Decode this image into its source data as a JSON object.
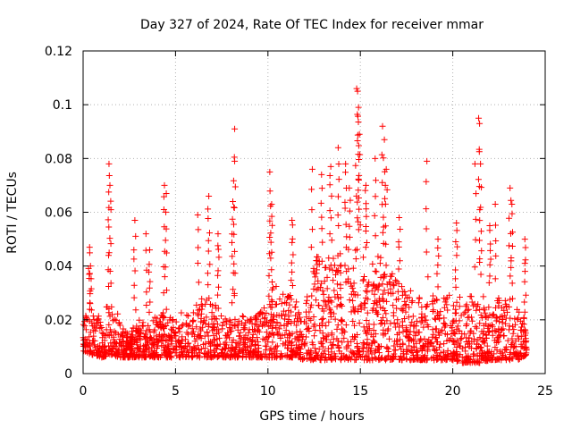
{
  "chart_data": {
    "type": "scatter",
    "title": "Day 327 of 2024, Rate Of TEC Index for receiver mmar",
    "xlabel": "GPS time / hours",
    "ylabel": "ROTI / TECUs",
    "xlim": [
      0,
      25
    ],
    "ylim": [
      0,
      0.12
    ],
    "xticks": [
      "0",
      "5",
      "10",
      "15",
      "20",
      "25"
    ],
    "yticks": [
      "0",
      "0.02",
      "0.04",
      "0.06",
      "0.08",
      "0.1",
      "0.12"
    ],
    "grid": true,
    "marker": "+",
    "color": "#ff0000",
    "series": [
      {
        "name": "ROTI",
        "description": "dense cloud of ~ 2000 plus-marker points from 0 to 24 h; baseline 0.005-0.02, spikes listed below",
        "envelope": {
          "x": [
            0,
            0.5,
            1,
            1.5,
            2,
            2.5,
            3,
            3.5,
            4,
            4.5,
            5,
            5.5,
            6,
            6.5,
            7,
            7.5,
            8,
            8.5,
            9,
            9.5,
            10,
            10.5,
            11,
            11.5,
            12,
            12.5,
            13,
            13.5,
            14,
            14.5,
            15,
            15.5,
            16,
            16.5,
            17,
            17.5,
            18,
            18.5,
            19,
            19.5,
            20,
            20.5,
            21,
            21.5,
            22,
            22.5,
            23,
            23.5,
            24
          ],
          "low": [
            0.008,
            0.007,
            0.006,
            0.007,
            0.006,
            0.006,
            0.006,
            0.006,
            0.006,
            0.006,
            0.006,
            0.006,
            0.006,
            0.006,
            0.006,
            0.006,
            0.006,
            0.006,
            0.006,
            0.006,
            0.006,
            0.006,
            0.006,
            0.006,
            0.005,
            0.005,
            0.005,
            0.005,
            0.005,
            0.005,
            0.005,
            0.005,
            0.005,
            0.005,
            0.005,
            0.005,
            0.005,
            0.005,
            0.005,
            0.005,
            0.005,
            0.004,
            0.004,
            0.004,
            0.005,
            0.005,
            0.005,
            0.005,
            0.006
          ],
          "high": [
            0.022,
            0.025,
            0.02,
            0.03,
            0.02,
            0.015,
            0.02,
            0.018,
            0.022,
            0.025,
            0.02,
            0.025,
            0.025,
            0.03,
            0.028,
            0.025,
            0.02,
            0.022,
            0.02,
            0.022,
            0.03,
            0.035,
            0.03,
            0.03,
            0.025,
            0.045,
            0.045,
            0.045,
            0.05,
            0.045,
            0.048,
            0.04,
            0.045,
            0.04,
            0.035,
            0.032,
            0.03,
            0.028,
            0.03,
            0.028,
            0.03,
            0.028,
            0.03,
            0.03,
            0.03,
            0.028,
            0.03,
            0.028,
            0.022
          ]
        },
        "spikes": [
          {
            "x": 1.4,
            "y": 0.078
          },
          {
            "x": 1.45,
            "y": 0.07
          },
          {
            "x": 0.35,
            "y": 0.047
          },
          {
            "x": 0.4,
            "y": 0.04
          },
          {
            "x": 2.8,
            "y": 0.057
          },
          {
            "x": 3.4,
            "y": 0.052
          },
          {
            "x": 3.6,
            "y": 0.046
          },
          {
            "x": 4.4,
            "y": 0.07
          },
          {
            "x": 4.5,
            "y": 0.067
          },
          {
            "x": 6.2,
            "y": 0.059
          },
          {
            "x": 6.8,
            "y": 0.066
          },
          {
            "x": 7.3,
            "y": 0.052
          },
          {
            "x": 8.2,
            "y": 0.091
          },
          {
            "x": 8.2,
            "y": 0.079
          },
          {
            "x": 8.1,
            "y": 0.064
          },
          {
            "x": 10.1,
            "y": 0.075
          },
          {
            "x": 10.2,
            "y": 0.063
          },
          {
            "x": 11.3,
            "y": 0.057
          },
          {
            "x": 12.4,
            "y": 0.076
          },
          {
            "x": 12.9,
            "y": 0.074
          },
          {
            "x": 13.4,
            "y": 0.077
          },
          {
            "x": 13.8,
            "y": 0.084
          },
          {
            "x": 14.2,
            "y": 0.078
          },
          {
            "x": 14.4,
            "y": 0.069
          },
          {
            "x": 14.8,
            "y": 0.106
          },
          {
            "x": 14.85,
            "y": 0.105
          },
          {
            "x": 14.9,
            "y": 0.099
          },
          {
            "x": 14.95,
            "y": 0.089
          },
          {
            "x": 15.3,
            "y": 0.07
          },
          {
            "x": 15.8,
            "y": 0.08
          },
          {
            "x": 16.2,
            "y": 0.092
          },
          {
            "x": 16.3,
            "y": 0.087
          },
          {
            "x": 16.4,
            "y": 0.076
          },
          {
            "x": 17.1,
            "y": 0.058
          },
          {
            "x": 18.6,
            "y": 0.079
          },
          {
            "x": 19.2,
            "y": 0.05
          },
          {
            "x": 20.2,
            "y": 0.056
          },
          {
            "x": 21.4,
            "y": 0.095
          },
          {
            "x": 21.45,
            "y": 0.093
          },
          {
            "x": 21.2,
            "y": 0.078
          },
          {
            "x": 21.5,
            "y": 0.078
          },
          {
            "x": 22.3,
            "y": 0.063
          },
          {
            "x": 22.0,
            "y": 0.055
          },
          {
            "x": 23.1,
            "y": 0.069
          },
          {
            "x": 23.2,
            "y": 0.063
          },
          {
            "x": 23.9,
            "y": 0.05
          }
        ]
      }
    ]
  }
}
